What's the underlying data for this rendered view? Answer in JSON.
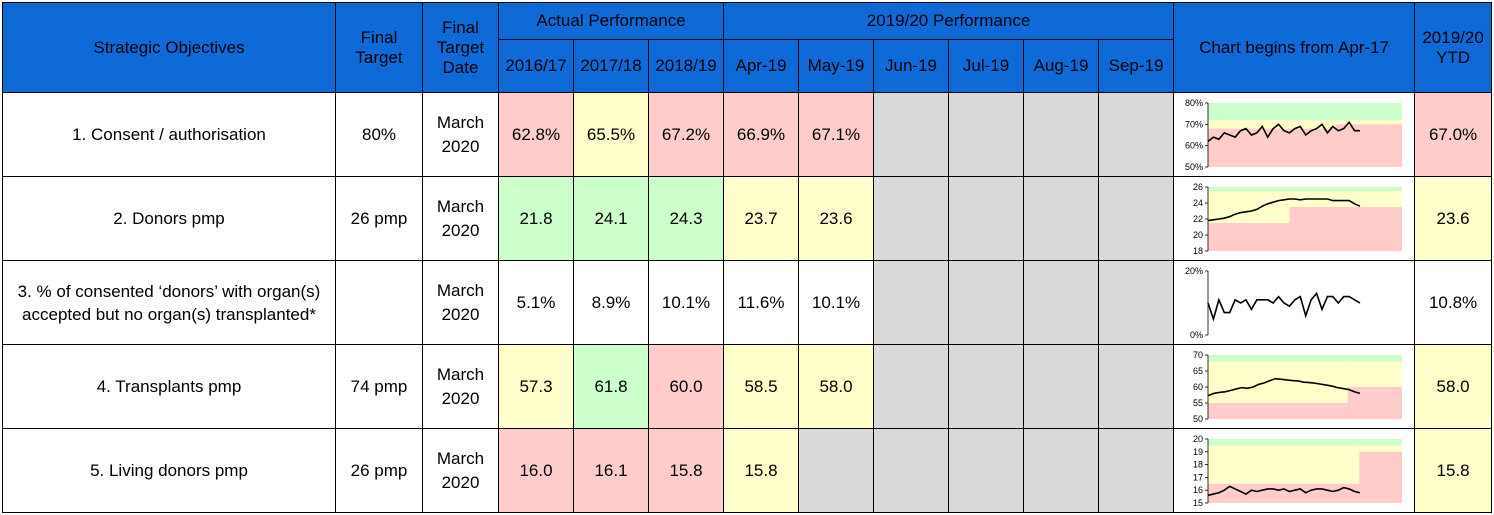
{
  "headers": {
    "objectives": "Strategic Objectives",
    "final_target": "Final Target",
    "final_target_date": "Final Target Date",
    "actual_performance": "Actual Performance",
    "current_performance": "2019/20 Performance",
    "chart_note": "Chart begins from Apr-17",
    "ytd": "2019/20 YTD",
    "years": [
      "2016/17",
      "2017/18",
      "2018/19"
    ],
    "months": [
      "Apr-19",
      "May-19",
      "Jun-19",
      "Jul-19",
      "Aug-19",
      "Sep-19"
    ]
  },
  "rows": [
    {
      "objective": "1. Consent / authorisation",
      "target": "80%",
      "date_line1": "March",
      "date_line2": "2020",
      "years": [
        "62.8%",
        "65.5%",
        "67.2%"
      ],
      "months": [
        "66.9%",
        "67.1%",
        "",
        "",
        "",
        ""
      ],
      "ytd": "67.0%",
      "year_status": [
        "red",
        "yellow",
        "red"
      ],
      "month_status": [
        "red",
        "red",
        "grey",
        "grey",
        "grey",
        "grey"
      ],
      "ytd_status": "red"
    },
    {
      "objective": "2. Donors pmp",
      "target": "26 pmp",
      "date_line1": "March",
      "date_line2": "2020",
      "years": [
        "21.8",
        "24.1",
        "24.3"
      ],
      "months": [
        "23.7",
        "23.6",
        "",
        "",
        "",
        ""
      ],
      "ytd": "23.6",
      "year_status": [
        "green",
        "green",
        "green"
      ],
      "month_status": [
        "yellow",
        "yellow",
        "grey",
        "grey",
        "grey",
        "grey"
      ],
      "ytd_status": "yellow"
    },
    {
      "objective": "3. % of consented ‘donors’ with organ(s) accepted but no organ(s) transplanted*",
      "target": "",
      "date_line1": "March",
      "date_line2": "2020",
      "years": [
        "5.1%",
        "8.9%",
        "10.1%"
      ],
      "months": [
        "11.6%",
        "10.1%",
        "",
        "",
        "",
        ""
      ],
      "ytd": "10.8%",
      "year_status": [
        "white",
        "white",
        "white"
      ],
      "month_status": [
        "white",
        "white",
        "grey",
        "grey",
        "grey",
        "grey"
      ],
      "ytd_status": "white"
    },
    {
      "objective": "4. Transplants pmp",
      "target": "74 pmp",
      "date_line1": "March",
      "date_line2": "2020",
      "years": [
        "57.3",
        "61.8",
        "60.0"
      ],
      "months": [
        "58.5",
        "58.0",
        "",
        "",
        "",
        ""
      ],
      "ytd": "58.0",
      "year_status": [
        "yellow",
        "green",
        "red"
      ],
      "month_status": [
        "yellow",
        "yellow",
        "grey",
        "grey",
        "grey",
        "grey"
      ],
      "ytd_status": "yellow"
    },
    {
      "objective": "5. Living donors pmp",
      "target": "26 pmp",
      "date_line1": "March",
      "date_line2": "2020",
      "years": [
        "16.0",
        "16.1",
        "15.8"
      ],
      "months": [
        "15.8",
        "",
        "",
        "",
        "",
        ""
      ],
      "ytd": "15.8",
      "year_status": [
        "red",
        "red",
        "red"
      ],
      "month_status": [
        "yellow",
        "grey",
        "grey",
        "grey",
        "grey",
        "grey"
      ],
      "ytd_status": "yellow"
    }
  ],
  "chart_data": [
    {
      "type": "line",
      "yticks": [
        "50%",
        "60%",
        "70%",
        "80%"
      ],
      "ylim": [
        50,
        80
      ],
      "values": [
        62,
        64,
        63,
        66,
        65,
        64,
        67,
        68,
        65,
        66,
        69,
        64,
        68,
        70,
        67,
        66,
        68,
        69,
        65,
        67,
        68,
        70,
        66,
        69,
        67,
        68,
        71,
        67,
        67
      ],
      "bands": {
        "green_from": 72,
        "yellow_from_start": 68,
        "yellow_from_end": 70,
        "step_at": 0.66
      }
    },
    {
      "type": "line",
      "yticks": [
        "18",
        "20",
        "22",
        "24",
        "26"
      ],
      "ylim": [
        18,
        26
      ],
      "values": [
        21.8,
        21.9,
        22.0,
        22.1,
        22.3,
        22.6,
        22.8,
        22.9,
        23.0,
        23.2,
        23.6,
        23.9,
        24.1,
        24.3,
        24.4,
        24.5,
        24.5,
        24.4,
        24.5,
        24.5,
        24.5,
        24.5,
        24.5,
        24.3,
        24.3,
        24.3,
        24.3,
        23.9,
        23.6
      ],
      "bands": {
        "green_from": 25.5,
        "yellow_from_start": 21.5,
        "yellow_from_end": 23.5,
        "step_at": 0.42
      }
    },
    {
      "type": "line",
      "yticks": [
        "0%",
        "20%"
      ],
      "ylim": [
        0,
        20
      ],
      "values": [
        10,
        5,
        11,
        7,
        7,
        11,
        10,
        11,
        8,
        11,
        11,
        11,
        10,
        12,
        10,
        9,
        11,
        12,
        6,
        11,
        13,
        8,
        12,
        12,
        10,
        12,
        12,
        11,
        10
      ],
      "bands": null
    },
    {
      "type": "line",
      "yticks": [
        "50",
        "55",
        "60",
        "65",
        "70"
      ],
      "ylim": [
        50,
        70
      ],
      "values": [
        57.3,
        58.0,
        58.3,
        58.5,
        58.9,
        59.4,
        59.8,
        59.6,
        60.0,
        60.8,
        61.3,
        62.0,
        62.6,
        62.4,
        62.2,
        62.0,
        61.9,
        61.5,
        61.4,
        61.2,
        60.9,
        60.6,
        60.3,
        59.8,
        59.5,
        59.2,
        58.5,
        58.0
      ],
      "bands": {
        "green_from": 68,
        "yellow_from_start": 55,
        "yellow_from_end": 60,
        "step_at": 0.72
      }
    },
    {
      "type": "line",
      "yticks": [
        "15",
        "16",
        "17",
        "18",
        "19",
        "20"
      ],
      "ylim": [
        15,
        20
      ],
      "values": [
        15.6,
        15.7,
        15.8,
        16.0,
        16.3,
        16.1,
        15.9,
        15.7,
        16.0,
        15.9,
        16.0,
        16.1,
        16.1,
        16.0,
        16.1,
        15.9,
        16.0,
        16.1,
        15.8,
        16.0,
        16.1,
        16.1,
        16.0,
        15.9,
        16.0,
        16.2,
        16.1,
        15.9,
        15.8
      ],
      "bands": {
        "green_from": 19.5,
        "yellow_from_start": 16.5,
        "yellow_from_end": 19.0,
        "step_at": 0.78
      }
    }
  ],
  "colors": {
    "header_blue": "#0d6ad6",
    "red": "#ffcccc",
    "yellow": "#ffffcc",
    "green": "#ccffcc",
    "grey": "#d9d9d9"
  }
}
